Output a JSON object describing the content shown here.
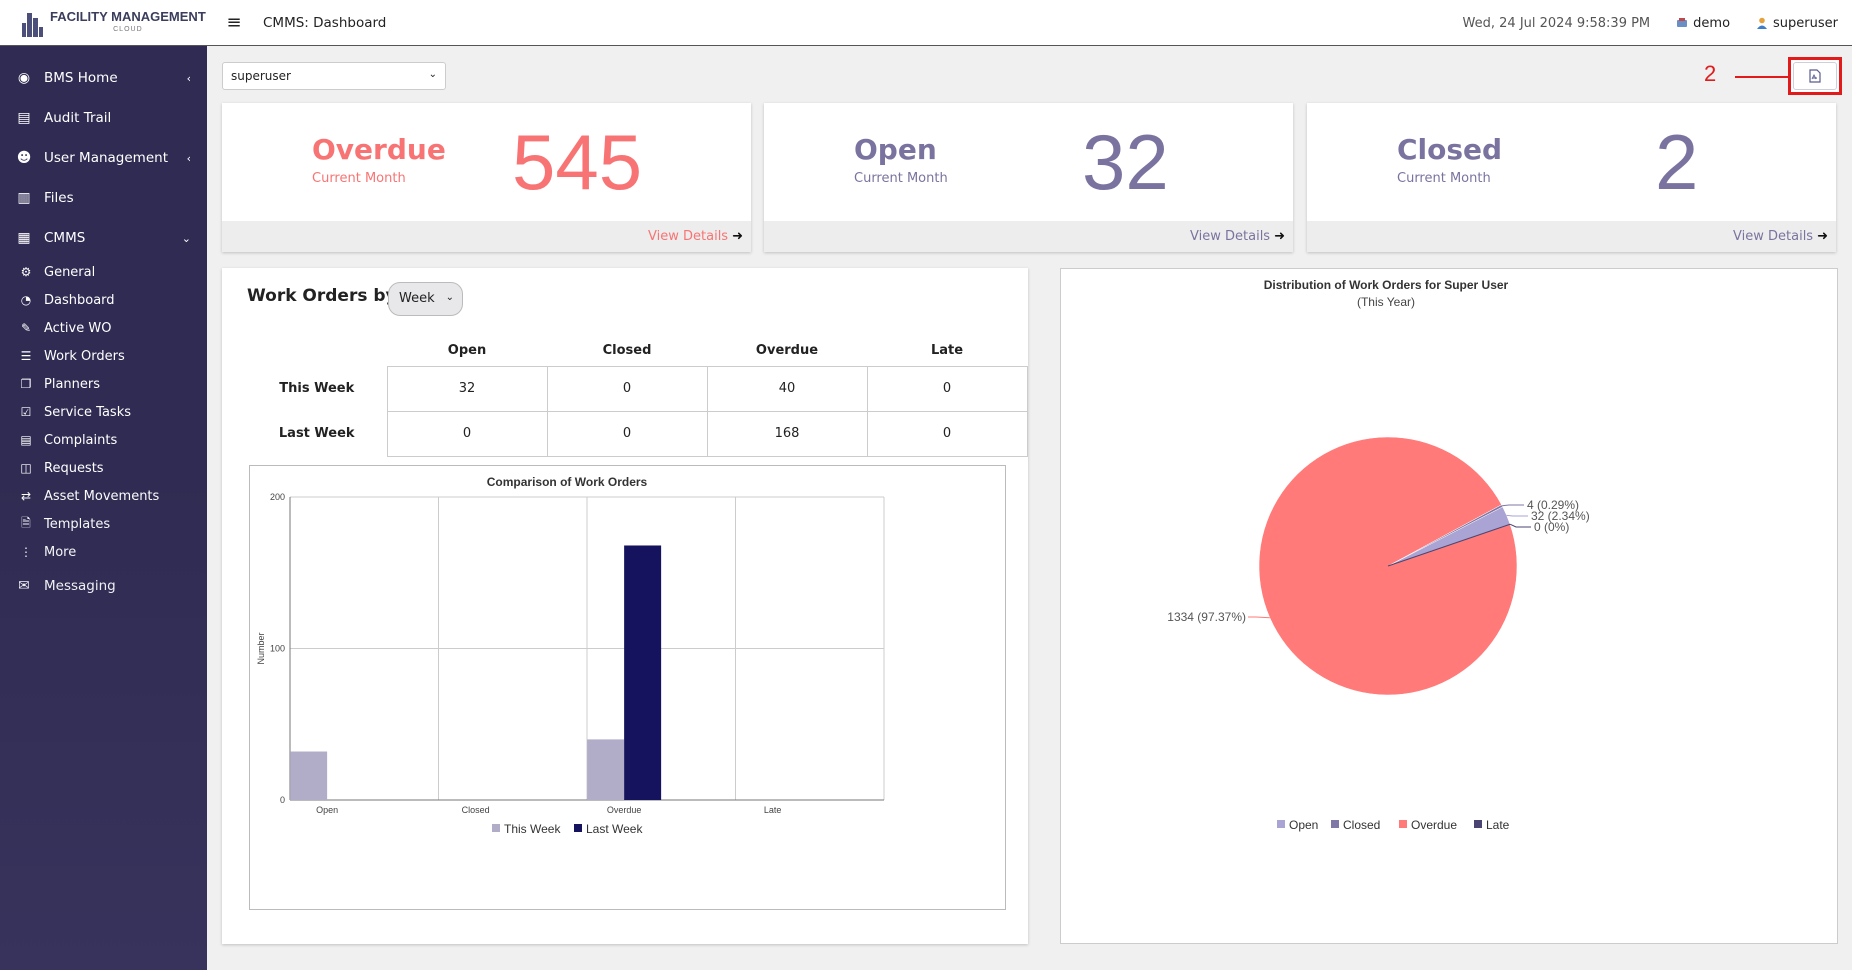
{
  "header": {
    "logo_text": "FACILITY MANAGEMENT",
    "logo_sub": "CLOUD",
    "page_title": "CMMS: Dashboard",
    "datetime": "Wed, 24 Jul 2024 9:58:39 PM",
    "tenant": "demo",
    "user": "superuser"
  },
  "sidebar": {
    "top_items": [
      {
        "label": "BMS Home"
      },
      {
        "label": "Audit Trail"
      },
      {
        "label": "User Management"
      },
      {
        "label": "Files"
      },
      {
        "label": "CMMS"
      }
    ],
    "cmms_items": [
      {
        "label": "General"
      },
      {
        "label": "Dashboard"
      },
      {
        "label": "Active WO"
      },
      {
        "label": "Work Orders"
      },
      {
        "label": "Planners"
      },
      {
        "label": "Service Tasks"
      },
      {
        "label": "Complaints"
      },
      {
        "label": "Requests"
      },
      {
        "label": "Asset Movements"
      },
      {
        "label": "Templates"
      },
      {
        "label": "More"
      }
    ],
    "messaging": "Messaging"
  },
  "filters": {
    "user_select": "superuser",
    "period_select": "Week"
  },
  "annotation": {
    "number": "2"
  },
  "colors": {
    "overdue": "#f87474",
    "open": "#7b739f",
    "closed": "#7b739f",
    "this_week": "#b1adc9",
    "last_week": "#16135e",
    "pie_overdue": "#ff7a78",
    "pie_open": "#a9a4d4",
    "pie_closed": "#7f77a6",
    "pie_late": "#4a4472"
  },
  "stats": [
    {
      "title": "Overdue",
      "sub": "Current Month",
      "value": "545",
      "link": "View Details"
    },
    {
      "title": "Open",
      "sub": "Current Month",
      "value": "32",
      "link": "View Details"
    },
    {
      "title": "Closed",
      "sub": "Current Month",
      "value": "2",
      "link": "View Details"
    }
  ],
  "work_orders": {
    "title": "Work Orders by",
    "columns": [
      "Open",
      "Closed",
      "Overdue",
      "Late"
    ],
    "rows": [
      {
        "label": "This Week",
        "values": [
          "32",
          "0",
          "40",
          "0"
        ]
      },
      {
        "label": "Last Week",
        "values": [
          "0",
          "0",
          "168",
          "0"
        ]
      }
    ]
  },
  "chart_data": [
    {
      "type": "bar",
      "title": "Comparison of Work Orders",
      "categories": [
        "Open",
        "Closed",
        "Overdue",
        "Late"
      ],
      "series": [
        {
          "name": "This Week",
          "values": [
            32,
            0,
            40,
            0
          ]
        },
        {
          "name": "Last Week",
          "values": [
            0,
            0,
            168,
            0
          ]
        }
      ],
      "ylabel": "Number",
      "ylim": [
        0,
        200
      ],
      "yticks": [
        "0",
        "100",
        "200"
      ],
      "grid": true,
      "legend": "bottom"
    },
    {
      "type": "pie",
      "title": "Distribution of Work Orders for Super User",
      "subtitle": "(This Year)",
      "slices": [
        {
          "name": "Open",
          "value": 32,
          "label": "32 (2.34%)"
        },
        {
          "name": "Closed",
          "value": 4,
          "label": "4 (0.29%)"
        },
        {
          "name": "Overdue",
          "value": 1334,
          "label": "1334 (97.37%)"
        },
        {
          "name": "Late",
          "value": 0,
          "label": "0 (0%)"
        }
      ],
      "legend": "bottom"
    }
  ]
}
